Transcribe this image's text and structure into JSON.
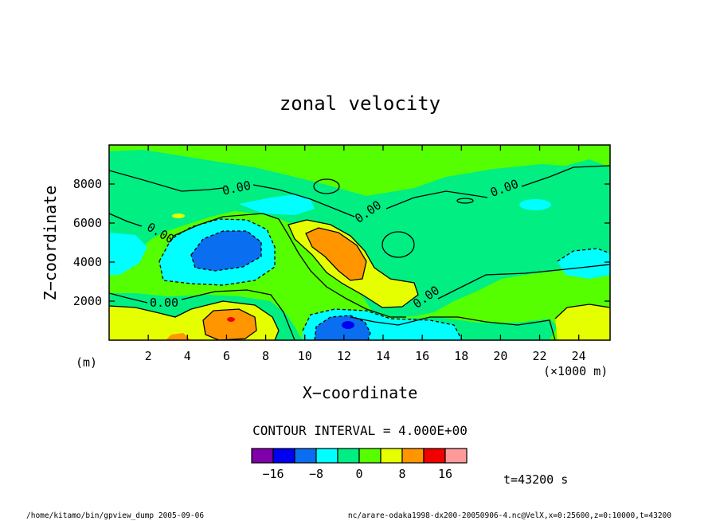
{
  "chart_data": {
    "type": "contour",
    "title": "zonal velocity",
    "xlabel": "X−coordinate",
    "ylabel": "Z−coordinate",
    "x_unit": "(×1000 m)",
    "y_unit": "(m)",
    "xlim": [
      0,
      25.6
    ],
    "ylim": [
      0,
      10000
    ],
    "x_ticks": [
      "2",
      "4",
      "6",
      "8",
      "10",
      "12",
      "14",
      "16",
      "18",
      "20",
      "22",
      "24"
    ],
    "y_ticks": [
      "2000",
      "4000",
      "6000",
      "8000"
    ],
    "contour_interval_text": "CONTOUR INTERVAL = 4.000E+00",
    "contour_labels": [
      "0.00",
      "0.00",
      "0.00",
      "0.00",
      "0.00",
      "0.00"
    ],
    "colorbar": {
      "colors": [
        "#7f00a8",
        "#0000f0",
        "#0a6ef0",
        "#00ffff",
        "#00ee82",
        "#55ff00",
        "#e6ff00",
        "#ff9600",
        "#f00000",
        "#ff9a9a"
      ],
      "labels": [
        "−16",
        "−8",
        "0",
        "8",
        "16"
      ]
    },
    "time_text": "t=43200 s",
    "regions_note": "positive (orange) cores near x=6,z=1200 and x=12,z=4600; negative (blue) cores near x=6,z=4600 and x=12,z=800"
  },
  "footer": {
    "left": "/home/kitamo/bin/gpview_dump  2005-09-06",
    "right": "nc/arare-odaka1998-dx200-20050906-4.nc@VelX,x=0:25600,z=0:10000,t=43200"
  }
}
